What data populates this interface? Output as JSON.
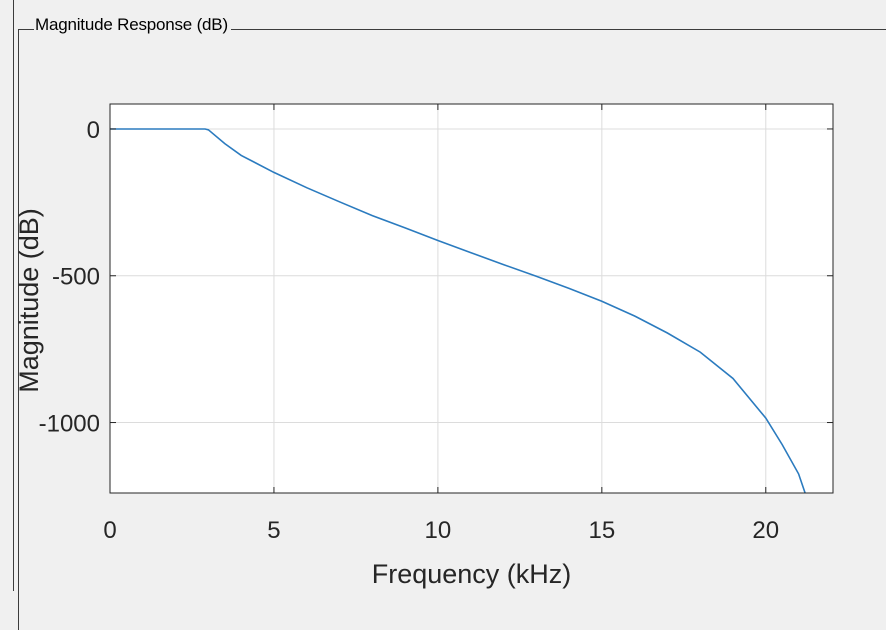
{
  "panel": {
    "title": "Magnitude Response (dB)"
  },
  "chart_data": {
    "type": "line",
    "xlabel": "Frequency (kHz)",
    "ylabel": "Magnitude (dB)",
    "xlim": [
      0,
      22.05
    ],
    "ylim": [
      -1240,
      85
    ],
    "xticks": [
      0,
      5,
      10,
      15,
      20
    ],
    "yticks": [
      0,
      -500,
      -1000
    ],
    "xtick_labels": [
      "0",
      "5",
      "10",
      "15",
      "20"
    ],
    "ytick_labels": [
      "0",
      "-500",
      "-1000"
    ],
    "grid": true,
    "colors": {
      "line": "#2b7bbf",
      "grid": "#dcdcdc",
      "axes": "#262626"
    },
    "series": [
      {
        "x": [
          0,
          1,
          2,
          2.9,
          3.0,
          3.5,
          4,
          5,
          6,
          7,
          8,
          9,
          10,
          11,
          12,
          13,
          14,
          15,
          16,
          17,
          18,
          19,
          20,
          20.5,
          21.0,
          21.2
        ],
        "values": [
          0,
          0,
          0,
          0,
          -3,
          -50,
          -90,
          -148,
          -200,
          -248,
          -295,
          -337,
          -380,
          -421,
          -462,
          -502,
          -543,
          -587,
          -637,
          -695,
          -760,
          -850,
          -985,
          -1075,
          -1175,
          -1240
        ]
      }
    ]
  }
}
